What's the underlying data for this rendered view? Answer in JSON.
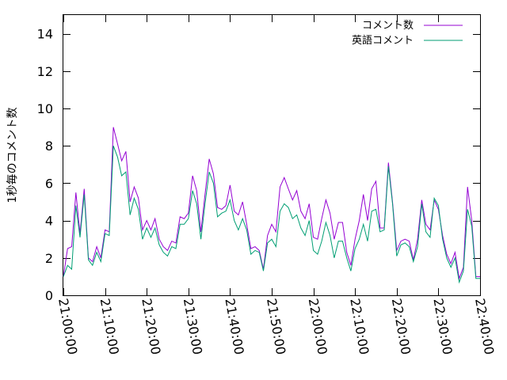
{
  "chart_data": {
    "type": "line",
    "title": "",
    "xlabel": "",
    "ylabel": "1秒毎のコメント数",
    "ylim": [
      0,
      15
    ],
    "yticks": [
      0,
      2,
      4,
      6,
      8,
      10,
      12,
      14
    ],
    "xlim_minutes": [
      0,
      100
    ],
    "xtick_labels": [
      "21:00:00",
      "21:10:00",
      "21:20:00",
      "21:30:00",
      "21:40:00",
      "21:50:00",
      "22:00:00",
      "22:10:00",
      "22:20:00",
      "22:30:00",
      "22:40:00"
    ],
    "legend_position": "top-right",
    "grid": false,
    "x": [
      0,
      1,
      2,
      3,
      4,
      5,
      6,
      7,
      8,
      9,
      10,
      11,
      12,
      13,
      14,
      15,
      16,
      17,
      18,
      19,
      20,
      21,
      22,
      23,
      24,
      25,
      26,
      27,
      28,
      29,
      30,
      31,
      32,
      33,
      34,
      35,
      36,
      37,
      38,
      39,
      40,
      41,
      42,
      43,
      44,
      45,
      46,
      47,
      48,
      49,
      50,
      51,
      52,
      53,
      54,
      55,
      56,
      57,
      58,
      59,
      60,
      61,
      62,
      63,
      64,
      65,
      66,
      67,
      68,
      69,
      70,
      71,
      72,
      73,
      74,
      75,
      76,
      77,
      78,
      79,
      80,
      81,
      82,
      83,
      84,
      85,
      86,
      87,
      88,
      89,
      90,
      91,
      92,
      93,
      94,
      95,
      96,
      97,
      98,
      99,
      100
    ],
    "series": [
      {
        "name": "コメント数",
        "color": "#9400d3",
        "values": [
          1.0,
          2.5,
          2.6,
          5.5,
          3.3,
          5.7,
          2.0,
          1.8,
          2.6,
          2.0,
          3.5,
          3.4,
          9.0,
          8.1,
          7.2,
          7.7,
          5.0,
          5.8,
          5.2,
          3.5,
          4.0,
          3.5,
          4.1,
          3.0,
          2.6,
          2.4,
          2.9,
          2.8,
          4.2,
          4.1,
          4.4,
          6.4,
          5.6,
          3.4,
          5.4,
          7.3,
          6.5,
          4.7,
          4.6,
          4.8,
          5.9,
          4.5,
          4.3,
          5.0,
          3.8,
          2.5,
          2.6,
          2.4,
          1.4,
          3.2,
          3.8,
          3.4,
          5.8,
          6.3,
          5.7,
          5.1,
          5.6,
          4.5,
          4.1,
          4.9,
          3.1,
          3.0,
          4.1,
          5.1,
          4.4,
          3.0,
          3.9,
          3.9,
          2.3,
          1.6,
          3.0,
          4.0,
          5.4,
          4.0,
          5.7,
          6.1,
          3.6,
          3.6,
          7.1,
          5.0,
          2.4,
          2.9,
          3.0,
          2.9,
          1.9,
          3.0,
          5.1,
          3.8,
          3.5,
          5.1,
          4.6,
          3.2,
          2.2,
          1.7,
          2.3,
          0.9,
          1.5,
          5.8,
          4.0,
          1.0,
          1.0
        ]
      },
      {
        "name": "英語コメント",
        "color": "#009e73",
        "values": [
          1.0,
          1.6,
          1.4,
          4.8,
          3.1,
          5.4,
          1.9,
          1.6,
          2.3,
          1.8,
          3.3,
          3.2,
          8.0,
          7.4,
          6.4,
          6.6,
          4.3,
          5.2,
          4.6,
          3.0,
          3.6,
          3.1,
          3.6,
          2.7,
          2.3,
          2.1,
          2.6,
          2.5,
          3.8,
          3.8,
          4.1,
          5.6,
          4.9,
          3.0,
          4.9,
          6.6,
          6.0,
          4.2,
          4.4,
          4.5,
          5.1,
          4.0,
          3.5,
          4.1,
          3.5,
          2.2,
          2.4,
          2.3,
          1.3,
          2.8,
          3.0,
          2.6,
          4.5,
          4.9,
          4.7,
          4.1,
          4.3,
          3.6,
          3.2,
          4.0,
          2.4,
          2.2,
          2.9,
          3.9,
          3.2,
          2.0,
          2.9,
          2.9,
          2.0,
          1.3,
          2.5,
          3.0,
          3.8,
          2.9,
          4.5,
          4.6,
          3.4,
          3.5,
          6.9,
          4.9,
          2.1,
          2.7,
          2.8,
          2.6,
          1.8,
          2.6,
          4.9,
          3.4,
          3.1,
          5.2,
          4.8,
          3.0,
          2.0,
          1.5,
          2.0,
          0.7,
          1.3,
          4.6,
          3.7,
          0.9,
          0.9
        ]
      }
    ]
  }
}
